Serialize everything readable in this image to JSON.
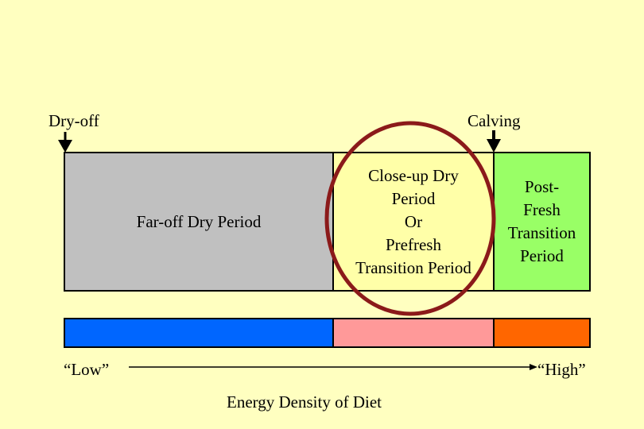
{
  "markers": {
    "dry_off": "Dry-off",
    "calving": "Calving"
  },
  "periods": {
    "far_off": {
      "label": "Far-off Dry Period",
      "color": "#c0c0c0"
    },
    "close_up": {
      "lines": [
        "Close-up Dry",
        "Period",
        "Or",
        "Prefresh",
        "Transition Period"
      ],
      "color": "#ffffa8"
    },
    "post_fresh": {
      "lines": [
        "Post-",
        "Fresh",
        "Transition",
        "Period"
      ],
      "color": "#99ff66"
    }
  },
  "energy_bars": {
    "far_off_color": "#0066ff",
    "close_up_color": "#ff9999",
    "post_fresh_color": "#ff6600"
  },
  "scale": {
    "low": "“Low”",
    "high": "“High”",
    "caption": "Energy Density of Diet"
  },
  "highlight_color": "#8b1a1a"
}
